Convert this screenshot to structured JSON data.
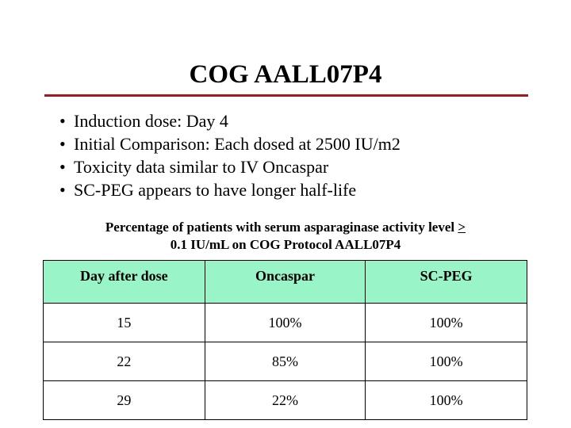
{
  "title": "COG AALL07P4",
  "colors": {
    "title_rule": "#a01c1c",
    "table_header_bg": "#99f5c7"
  },
  "bullets": [
    "Induction dose: Day 4",
    "Initial Comparison: Each dosed at 2500 IU/m2",
    "Toxicity data similar to IV Oncaspar",
    "SC-PEG appears to have longer half-life"
  ],
  "bullet_symbol": "•",
  "table": {
    "caption_line1": "Percentage of patients with serum asparaginase activity level ",
    "caption_ge": ">",
    "caption_line2": "0.1 IU/mL on COG Protocol AALL07P4",
    "headers": [
      "Day after dose",
      "Oncaspar",
      "SC-PEG"
    ],
    "rows": [
      [
        "15",
        "100%",
        "100%"
      ],
      [
        "22",
        "85%",
        "100%"
      ],
      [
        "29",
        "22%",
        "100%"
      ]
    ]
  }
}
